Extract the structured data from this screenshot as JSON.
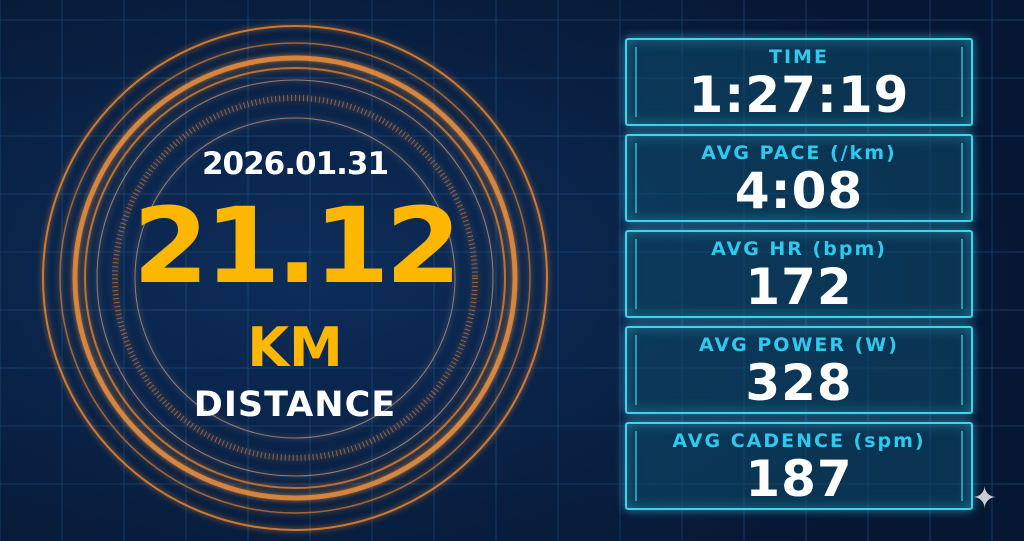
{
  "colors": {
    "background": "#071c3a",
    "accent_orange": "#fdb700",
    "ring": "#f08a2e",
    "panel_border": "#3fd4ec",
    "panel_label": "#2fc9f0"
  },
  "main": {
    "date": "2026.01.31",
    "distance": "21.12",
    "unit": "KM",
    "label": "DISTANCE"
  },
  "stats": [
    {
      "label": "TIME",
      "value": "1:27:19"
    },
    {
      "label": "AVG PACE (/km)",
      "value": "4:08"
    },
    {
      "label": "AVG HR (bpm)",
      "value": "172"
    },
    {
      "label": "AVG POWER (W)",
      "value": "328"
    },
    {
      "label": "AVG CADENCE (spm)",
      "value": "187"
    }
  ],
  "icons": {
    "corner": "sparkle-icon"
  }
}
